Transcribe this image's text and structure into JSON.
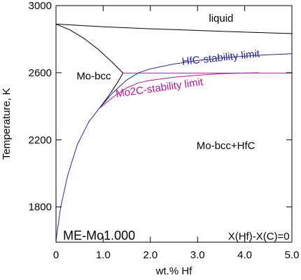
{
  "chart_data": {
    "type": "line",
    "title": "",
    "xlabel": "wt.% Hf",
    "ylabel": "Temperature, K",
    "xlim": [
      0,
      5.0
    ],
    "ylim": [
      1590,
      3000
    ],
    "x_ticks": [
      0,
      1.0,
      2.0,
      3.0,
      4.0,
      5.0
    ],
    "x_tick_labels": [
      "0",
      "1.0",
      "2.0",
      "3.0",
      "4.0",
      "5.0"
    ],
    "y_ticks": [
      1800,
      2200,
      2600,
      3000
    ],
    "y_tick_labels": [
      "1800",
      "2200",
      "2600",
      "3000"
    ],
    "grid": false,
    "series": [
      {
        "name": "",
        "color": "#000000",
        "x": [
          0,
          1.0,
          2.0,
          3.0,
          4.0,
          5.0
        ],
        "y": [
          2890,
          2874,
          2862,
          2852,
          2842,
          2833
        ]
      },
      {
        "name": "",
        "color": "#000000",
        "x": [
          0,
          0.3,
          0.6,
          0.9,
          1.2,
          1.42
        ],
        "y": [
          2890,
          2855,
          2803,
          2738,
          2660,
          2598
        ]
      },
      {
        "name": "",
        "color": "#000000",
        "x": [
          0.91,
          1.1,
          1.3,
          1.42
        ],
        "y": [
          2385,
          2455,
          2540,
          2598
        ]
      },
      {
        "name": "HfC-stability limit",
        "color": "#2a2a8a",
        "x": [
          0,
          0.1,
          0.25,
          0.45,
          0.7,
          0.91,
          1.2,
          1.5,
          1.75,
          2.0,
          2.5,
          3.0,
          3.5,
          4.0,
          4.5,
          5.0
        ],
        "y": [
          1600,
          1800,
          1990,
          2170,
          2310,
          2385,
          2480,
          2557,
          2600,
          2623,
          2652,
          2673,
          2688,
          2699,
          2707,
          2713
        ]
      },
      {
        "name": "Mo2C-stability limit",
        "color": "#b01a94",
        "x": [
          0.91,
          1.2,
          1.5,
          1.75,
          2.0,
          2.5,
          3.0,
          3.5,
          4.0,
          4.3
        ],
        "y": [
          2385,
          2453,
          2510,
          2540,
          2555,
          2573,
          2585,
          2594,
          2598,
          2600
        ]
      },
      {
        "name": "",
        "color": "#b01a94",
        "x": [
          1.42,
          5.0
        ],
        "y": [
          2598,
          2598
        ]
      }
    ],
    "annotations": [
      {
        "text": "liquid",
        "x": 3.5,
        "y": 2905
      },
      {
        "text": "Mo-bcc",
        "x": 0.8,
        "y": 2560
      },
      {
        "text": "Mo-bcc+HfC",
        "x": 3.6,
        "y": 2145
      },
      {
        "text": "HfC-stability limit",
        "x": 3.5,
        "y": 2670,
        "series": "HfC-stability limit"
      },
      {
        "text": "Mo2C-stability limit",
        "x": 2.2,
        "y": 2490,
        "series": "Mo2C-stability limit"
      },
      {
        "text": "ME-Mo1.000",
        "x": 0.15,
        "y": 1605
      },
      {
        "text": "X(Hf)-X(C)=0",
        "x": 4.95,
        "y": 1605
      }
    ]
  }
}
